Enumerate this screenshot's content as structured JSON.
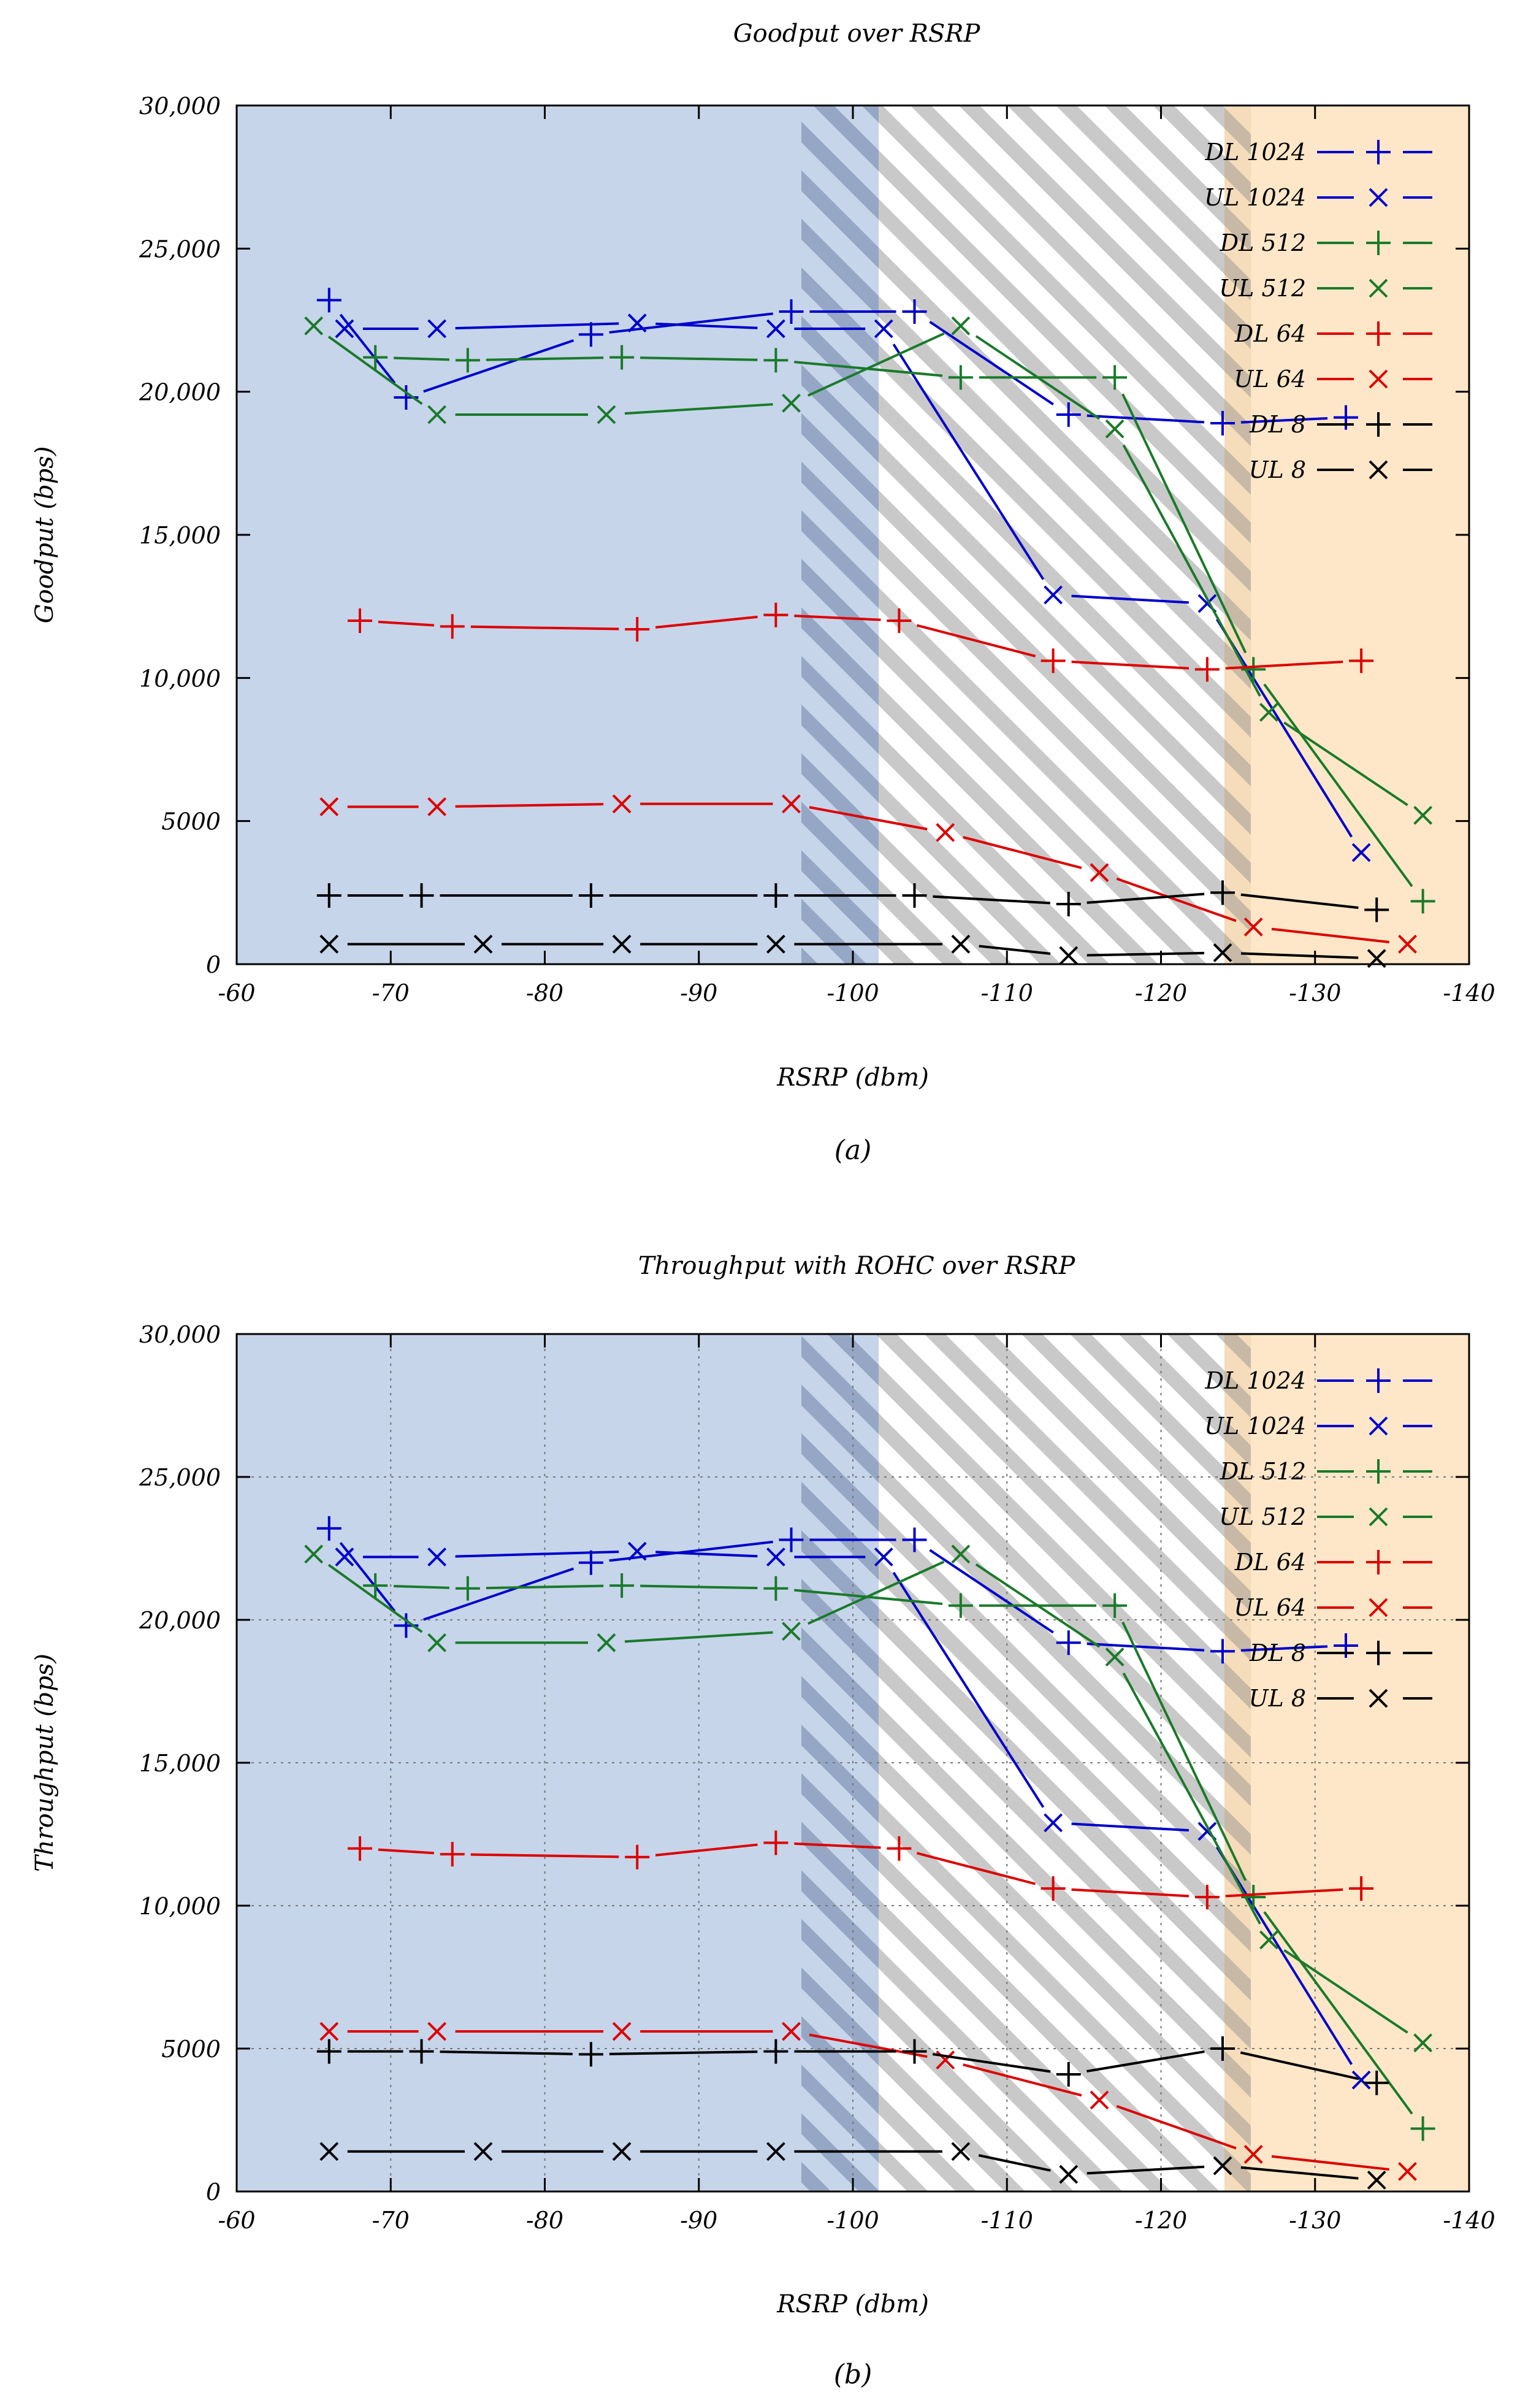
{
  "chart_data": [
    {
      "type": "line",
      "title": "Goodput over RSRP",
      "xlabel": "RSRP (dbm)",
      "ylabel": "Goodput (bps)",
      "caption": "(a)",
      "xlim": [
        -60,
        -140
      ],
      "ylim": [
        0,
        30000
      ],
      "grid": false,
      "legend_position": "top-right",
      "x_ticks": [
        "-60",
        "-70",
        "-80",
        "-90",
        "-100",
        "-110",
        "-120",
        "-130",
        "-140"
      ],
      "y_ticks": [
        "0",
        "5000",
        "10,000",
        "15,000",
        "20,000",
        "25,000",
        "30,000"
      ],
      "regions": [
        {
          "from": -60,
          "to": -97,
          "fill": "blue"
        },
        {
          "from": -97,
          "to": -102,
          "fill": "blue-hatched"
        },
        {
          "from": -102,
          "to": -124.5,
          "fill": "hatched"
        },
        {
          "from": -124.5,
          "to": -126,
          "fill": "orange-hatched"
        },
        {
          "from": -126,
          "to": -140,
          "fill": "orange"
        }
      ],
      "series": [
        {
          "name": "DL 1024",
          "marker": "+",
          "color": "#0000cc",
          "points": [
            [
              -66,
              23200
            ],
            [
              -71,
              19800
            ],
            [
              -83,
              22000
            ],
            [
              -96,
              22800
            ],
            [
              -104,
              22800
            ],
            [
              -114,
              19200
            ],
            [
              -124,
              18900
            ],
            [
              -132,
              19100
            ]
          ]
        },
        {
          "name": "UL 1024",
          "marker": "x",
          "color": "#0000cc",
          "points": [
            [
              -67,
              22200
            ],
            [
              -73,
              22200
            ],
            [
              -86,
              22400
            ],
            [
              -95,
              22200
            ],
            [
              -102,
              22200
            ],
            [
              -113,
              12900
            ],
            [
              -123,
              12600
            ],
            [
              -133,
              3900
            ]
          ]
        },
        {
          "name": "DL 512",
          "marker": "+",
          "color": "#1a7a2a",
          "points": [
            [
              -69,
              21200
            ],
            [
              -75,
              21100
            ],
            [
              -85,
              21200
            ],
            [
              -95,
              21100
            ],
            [
              -107,
              20500
            ],
            [
              -117,
              20500
            ],
            [
              -126,
              10300
            ],
            [
              -137,
              2200
            ]
          ]
        },
        {
          "name": "UL 512",
          "marker": "x",
          "color": "#1a7a2a",
          "points": [
            [
              -65,
              22300
            ],
            [
              -73,
              19200
            ],
            [
              -84,
              19200
            ],
            [
              -96,
              19600
            ],
            [
              -107,
              22300
            ],
            [
              -117,
              18700
            ],
            [
              -127,
              8800
            ],
            [
              -137,
              5200
            ]
          ]
        },
        {
          "name": "DL 64",
          "marker": "+",
          "color": "#dd0000",
          "points": [
            [
              -68,
              12000
            ],
            [
              -74,
              11800
            ],
            [
              -86,
              11700
            ],
            [
              -95,
              12200
            ],
            [
              -103,
              12000
            ],
            [
              -113,
              10600
            ],
            [
              -123,
              10300
            ],
            [
              -133,
              10600
            ]
          ]
        },
        {
          "name": "UL 64",
          "marker": "x",
          "color": "#dd0000",
          "points": [
            [
              -66,
              5500
            ],
            [
              -73,
              5500
            ],
            [
              -85,
              5600
            ],
            [
              -96,
              5600
            ],
            [
              -106,
              4600
            ],
            [
              -116,
              3200
            ],
            [
              -126,
              1300
            ],
            [
              -136,
              700
            ]
          ]
        },
        {
          "name": "DL 8",
          "marker": "+",
          "color": "#000000",
          "points": [
            [
              -66,
              2400
            ],
            [
              -72,
              2400
            ],
            [
              -83,
              2400
            ],
            [
              -95,
              2400
            ],
            [
              -104,
              2400
            ],
            [
              -114,
              2100
            ],
            [
              -124,
              2500
            ],
            [
              -134,
              1900
            ]
          ]
        },
        {
          "name": "UL 8",
          "marker": "x",
          "color": "#000000",
          "points": [
            [
              -66,
              700
            ],
            [
              -76,
              700
            ],
            [
              -85,
              700
            ],
            [
              -95,
              700
            ],
            [
              -107,
              700
            ],
            [
              -114,
              300
            ],
            [
              -124,
              400
            ],
            [
              -134,
              200
            ]
          ]
        }
      ]
    },
    {
      "type": "line",
      "title": "Throughput with ROHC over RSRP",
      "xlabel": "RSRP (dbm)",
      "ylabel": "Throughput (bps)",
      "caption": "(b)",
      "xlim": [
        -60,
        -140
      ],
      "ylim": [
        0,
        30000
      ],
      "grid": true,
      "legend_position": "top-right",
      "x_ticks": [
        "-60",
        "-70",
        "-80",
        "-90",
        "-100",
        "-110",
        "-120",
        "-130",
        "-140"
      ],
      "y_ticks": [
        "0",
        "5000",
        "10,000",
        "15,000",
        "20,000",
        "25,000",
        "30,000"
      ],
      "regions": [
        {
          "from": -60,
          "to": -97,
          "fill": "blue"
        },
        {
          "from": -97,
          "to": -102,
          "fill": "blue-hatched"
        },
        {
          "from": -102,
          "to": -124.5,
          "fill": "hatched"
        },
        {
          "from": -124.5,
          "to": -126,
          "fill": "orange-hatched"
        },
        {
          "from": -126,
          "to": -140,
          "fill": "orange"
        }
      ],
      "series": [
        {
          "name": "DL 1024",
          "marker": "+",
          "color": "#0000cc",
          "points": [
            [
              -66,
              23200
            ],
            [
              -71,
              19800
            ],
            [
              -83,
              22000
            ],
            [
              -96,
              22800
            ],
            [
              -104,
              22800
            ],
            [
              -114,
              19200
            ],
            [
              -124,
              18900
            ],
            [
              -132,
              19100
            ]
          ]
        },
        {
          "name": "UL 1024",
          "marker": "x",
          "color": "#0000cc",
          "points": [
            [
              -67,
              22200
            ],
            [
              -73,
              22200
            ],
            [
              -86,
              22400
            ],
            [
              -95,
              22200
            ],
            [
              -102,
              22200
            ],
            [
              -113,
              12900
            ],
            [
              -123,
              12600
            ],
            [
              -133,
              3900
            ]
          ]
        },
        {
          "name": "DL 512",
          "marker": "+",
          "color": "#1a7a2a",
          "points": [
            [
              -69,
              21200
            ],
            [
              -75,
              21100
            ],
            [
              -85,
              21200
            ],
            [
              -95,
              21100
            ],
            [
              -107,
              20500
            ],
            [
              -117,
              20500
            ],
            [
              -126,
              10300
            ],
            [
              -137,
              2200
            ]
          ]
        },
        {
          "name": "UL 512",
          "marker": "x",
          "color": "#1a7a2a",
          "points": [
            [
              -65,
              22300
            ],
            [
              -73,
              19200
            ],
            [
              -84,
              19200
            ],
            [
              -96,
              19600
            ],
            [
              -107,
              22300
            ],
            [
              -117,
              18700
            ],
            [
              -127,
              8800
            ],
            [
              -137,
              5200
            ]
          ]
        },
        {
          "name": "DL 64",
          "marker": "+",
          "color": "#dd0000",
          "points": [
            [
              -68,
              12000
            ],
            [
              -74,
              11800
            ],
            [
              -86,
              11700
            ],
            [
              -95,
              12200
            ],
            [
              -103,
              12000
            ],
            [
              -113,
              10600
            ],
            [
              -123,
              10300
            ],
            [
              -133,
              10600
            ]
          ]
        },
        {
          "name": "UL 64",
          "marker": "x",
          "color": "#dd0000",
          "points": [
            [
              -66,
              5600
            ],
            [
              -73,
              5600
            ],
            [
              -85,
              5600
            ],
            [
              -96,
              5600
            ],
            [
              -106,
              4600
            ],
            [
              -116,
              3200
            ],
            [
              -126,
              1300
            ],
            [
              -136,
              700
            ]
          ]
        },
        {
          "name": "DL 8",
          "marker": "+",
          "color": "#000000",
          "points": [
            [
              -66,
              4900
            ],
            [
              -72,
              4900
            ],
            [
              -83,
              4800
            ],
            [
              -95,
              4900
            ],
            [
              -104,
              4900
            ],
            [
              -114,
              4100
            ],
            [
              -124,
              5000
            ],
            [
              -134,
              3800
            ]
          ]
        },
        {
          "name": "UL 8",
          "marker": "x",
          "color": "#000000",
          "points": [
            [
              -66,
              1400
            ],
            [
              -76,
              1400
            ],
            [
              -85,
              1400
            ],
            [
              -95,
              1400
            ],
            [
              -107,
              1400
            ],
            [
              -114,
              600
            ],
            [
              -124,
              900
            ],
            [
              -134,
              400
            ]
          ]
        }
      ]
    }
  ]
}
